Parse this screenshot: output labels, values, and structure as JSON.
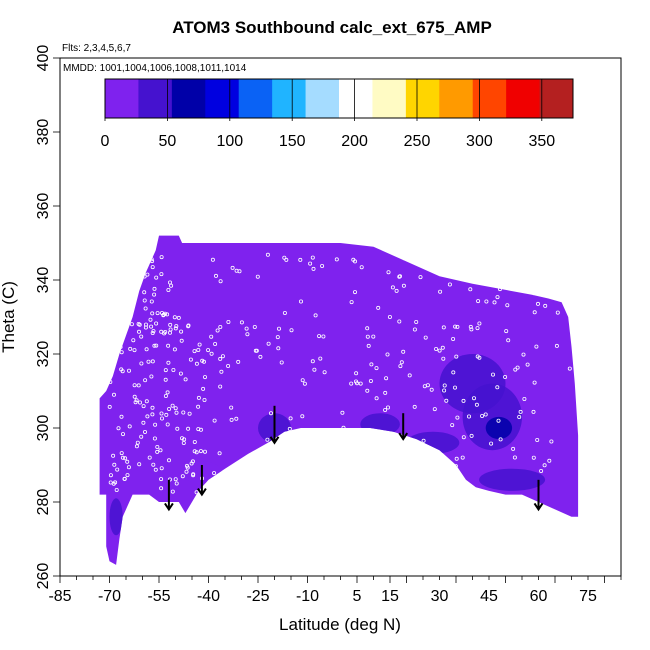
{
  "chart_data": {
    "type": "heatmap",
    "title": "ATOM3 Southbound calc_ext_675_AMP",
    "flights_label": "Flts: 2,3,4,5,6,7",
    "mmdd_label": "MMDD: 1001,1004,1006,1008,1011,1014",
    "xlabel": "Latitude (deg N)",
    "ylabel": "Theta (C)",
    "xlim": [
      -85,
      85
    ],
    "ylim": [
      260,
      400
    ],
    "x_ticks": [
      -85,
      -70,
      -55,
      -40,
      -25,
      -10,
      5,
      15,
      30,
      45,
      60,
      75
    ],
    "x_tick_labels": [
      "-85",
      "-70",
      "-55",
      "-40",
      "-25",
      "-10",
      "5",
      "15",
      "30",
      "45",
      "60",
      "75"
    ],
    "y_ticks": [
      260,
      280,
      300,
      320,
      340,
      360,
      380,
      400
    ],
    "y_tick_labels": [
      "260",
      "280",
      "300",
      "320",
      "340",
      "360",
      "380",
      "400"
    ],
    "colorbar": {
      "range": [
        0,
        375
      ],
      "ticks": [
        0,
        50,
        100,
        150,
        200,
        250,
        300,
        350
      ],
      "tick_labels": [
        "0",
        "50",
        "100",
        "150",
        "200",
        "250",
        "300",
        "350"
      ],
      "colors": [
        "#7f22ee",
        "#4512cf",
        "#0000a8",
        "#0000e0",
        "#0a62f5",
        "#20b4ff",
        "#a5dcff",
        "#ffffff",
        "#fffbc4",
        "#ffd500",
        "#ff9a00",
        "#ff4500",
        "#f00000",
        "#b42020"
      ]
    },
    "field": {
      "background_value": 10,
      "background_color": "#7f22ee",
      "outline": [
        [
          -73,
          308
        ],
        [
          -73,
          282
        ],
        [
          -71,
          282
        ],
        [
          -71,
          268
        ],
        [
          -70,
          264
        ],
        [
          -68,
          263
        ],
        [
          -67,
          270
        ],
        [
          -66,
          276
        ],
        [
          -63,
          282
        ],
        [
          -58,
          282
        ],
        [
          -55,
          280
        ],
        [
          -52,
          280
        ],
        [
          -49,
          280
        ],
        [
          -47,
          277
        ],
        [
          -43,
          283
        ],
        [
          -40,
          286
        ],
        [
          -35,
          289
        ],
        [
          -28,
          293
        ],
        [
          -22,
          296
        ],
        [
          -17,
          299
        ],
        [
          -12,
          300
        ],
        [
          -5,
          300
        ],
        [
          2,
          300
        ],
        [
          9,
          300
        ],
        [
          16,
          299
        ],
        [
          23,
          297
        ],
        [
          30,
          294
        ],
        [
          35,
          290
        ],
        [
          38,
          286
        ],
        [
          41,
          284
        ],
        [
          45,
          283
        ],
        [
          50,
          282
        ],
        [
          55,
          282
        ],
        [
          60,
          280
        ],
        [
          65,
          278
        ],
        [
          70,
          276
        ],
        [
          72,
          276
        ],
        [
          72,
          298
        ],
        [
          71,
          312
        ],
        [
          70,
          322
        ],
        [
          69,
          330
        ],
        [
          67,
          334
        ],
        [
          63,
          335
        ],
        [
          58,
          336
        ],
        [
          52,
          337
        ],
        [
          46,
          338
        ],
        [
          40,
          339
        ],
        [
          35,
          340
        ],
        [
          30,
          341
        ],
        [
          25,
          343
        ],
        [
          20,
          345
        ],
        [
          15,
          347
        ],
        [
          10,
          349
        ],
        [
          0,
          350
        ],
        [
          -20,
          350
        ],
        [
          -40,
          350
        ],
        [
          -48,
          350
        ],
        [
          -49,
          352
        ],
        [
          -55,
          352
        ],
        [
          -56,
          348
        ],
        [
          -59,
          342
        ],
        [
          -61,
          337
        ],
        [
          -63,
          330
        ],
        [
          -65,
          325
        ],
        [
          -67,
          320
        ],
        [
          -69,
          314
        ],
        [
          -71,
          310
        ]
      ],
      "anomalies": [
        {
          "lat": 46,
          "theta": 303,
          "value": 48,
          "rx": 9,
          "ry": 9
        },
        {
          "lat": 48,
          "theta": 300,
          "value": 70,
          "rx": 4,
          "ry": 3
        },
        {
          "lat": 40,
          "theta": 312,
          "value": 30,
          "rx": 10,
          "ry": 8
        },
        {
          "lat": 52,
          "theta": 286,
          "value": 35,
          "rx": 10,
          "ry": 3
        },
        {
          "lat": 28,
          "theta": 296,
          "value": 40,
          "rx": 8,
          "ry": 3
        },
        {
          "lat": 12,
          "theta": 301,
          "value": 30,
          "rx": 6,
          "ry": 3
        },
        {
          "lat": -20,
          "theta": 300,
          "value": 35,
          "rx": 5,
          "ry": 4
        },
        {
          "lat": -68,
          "theta": 276,
          "value": 30,
          "rx": 2,
          "ry": 5
        },
        {
          "lat": -42,
          "theta": 288,
          "value": 25,
          "rx": 6,
          "ry": 3
        }
      ]
    },
    "arrows": [
      {
        "lat": -52,
        "theta_top": 286,
        "theta_tip": 278
      },
      {
        "lat": -42,
        "theta_top": 290,
        "theta_tip": 282
      },
      {
        "lat": -20,
        "theta_top": 306,
        "theta_tip": 296
      },
      {
        "lat": 19,
        "theta_top": 304,
        "theta_tip": 297
      },
      {
        "lat": 60,
        "theta_top": 286,
        "theta_tip": 278
      }
    ],
    "points_note": "white open circles mark sample locations"
  }
}
